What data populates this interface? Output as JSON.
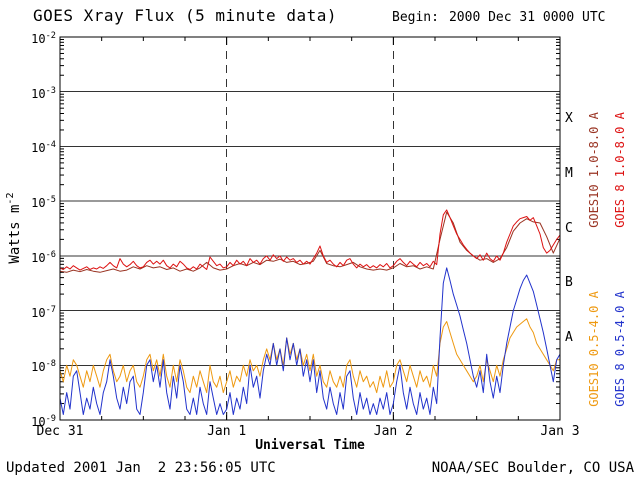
{
  "header": {
    "title": "GOES Xray Flux (5 minute data)",
    "begin_label": "Begin:",
    "begin_value": "2000 Dec 31 0000 UTC"
  },
  "footer": {
    "updated": "Updated 2001 Jan  2 23:56:05 UTC",
    "source": "NOAA/SEC Boulder, CO USA"
  },
  "chart_data": {
    "type": "line",
    "title": "GOES Xray Flux (5 minute data)",
    "xlabel": "Universal Time",
    "ylabel_base": "Watts m",
    "ylabel_sup": "-2",
    "y_tick_base": "10",
    "x_range_days": [
      0,
      3
    ],
    "y_log_range": [
      -9,
      -2
    ],
    "y_ticks_exponents": [
      -2,
      -3,
      -4,
      -5,
      -6,
      -7,
      -8,
      -9
    ],
    "x_ticks": [
      {
        "label": "Dec 31",
        "day": 0
      },
      {
        "label": "Jan 1",
        "day": 1
      },
      {
        "label": "Jan 2",
        "day": 2
      },
      {
        "label": "Jan 3",
        "day": 3
      }
    ],
    "grid": {
      "h_solid_decades": true,
      "v_dashed_days": [
        1,
        2
      ]
    },
    "flare_classes": [
      {
        "label": "X",
        "log_center": -3.5
      },
      {
        "label": "M",
        "log_center": -4.5
      },
      {
        "label": "C",
        "log_center": -5.5
      },
      {
        "label": "B",
        "log_center": -6.5
      },
      {
        "label": "A",
        "log_center": -7.5
      }
    ],
    "legend": [
      {
        "label": "GOES10 1.0-8.0 A",
        "color": "#993322",
        "column": 0,
        "row": 0
      },
      {
        "label": "GOES 8 1.0-8.0 A",
        "color": "#dd1111",
        "column": 1,
        "row": 0
      },
      {
        "label": "GOES10 0.5-4.0 A",
        "color": "#ee9911",
        "column": 0,
        "row": 1
      },
      {
        "label": "GOES 8 0.5-4.0 A",
        "color": "#2233cc",
        "column": 1,
        "row": 1
      }
    ],
    "series": [
      {
        "name": "GOES10 1.0-8.0 A",
        "color": "#993322",
        "x0": 0,
        "dx": 0.04,
        "log10_values": [
          -6.28,
          -6.3,
          -6.26,
          -6.29,
          -6.25,
          -6.28,
          -6.3,
          -6.27,
          -6.24,
          -6.28,
          -6.26,
          -6.2,
          -6.24,
          -6.18,
          -6.22,
          -6.2,
          -6.25,
          -6.22,
          -6.28,
          -6.24,
          -6.28,
          -6.22,
          -6.12,
          -6.22,
          -6.26,
          -6.24,
          -6.18,
          -6.14,
          -6.18,
          -6.12,
          -6.16,
          -6.08,
          -6.1,
          -6.06,
          -6.12,
          -6.1,
          -6.16,
          -6.14,
          -6.1,
          -5.9,
          -6.14,
          -6.18,
          -6.2,
          -6.16,
          -6.12,
          -6.2,
          -6.24,
          -6.26,
          -6.24,
          -6.26,
          -6.22,
          -6.14,
          -6.2,
          -6.18,
          -6.24,
          -6.2,
          -6.24,
          -5.7,
          -5.2,
          -5.4,
          -5.75,
          -5.9,
          -6.0,
          -6.08,
          -6.05,
          -6.12,
          -6.05,
          -5.85,
          -5.55,
          -5.4,
          -5.32,
          -5.38,
          -5.4,
          -5.65,
          -5.95,
          -5.68
        ]
      },
      {
        "name": "GOES10 0.5-4.0 A",
        "color": "#ee9911",
        "x0": 0,
        "dx": 0.02,
        "log10_values": [
          -8.1,
          -8.3,
          -8.0,
          -8.2,
          -7.9,
          -8.0,
          -8.2,
          -8.4,
          -8.1,
          -8.3,
          -8.0,
          -8.2,
          -8.4,
          -8.1,
          -7.9,
          -7.8,
          -8.1,
          -8.3,
          -8.2,
          -8.0,
          -8.3,
          -8.1,
          -8.0,
          -8.3,
          -8.4,
          -8.2,
          -7.9,
          -7.8,
          -8.1,
          -7.9,
          -8.2,
          -7.8,
          -8.2,
          -8.4,
          -8.0,
          -8.3,
          -7.9,
          -8.1,
          -8.4,
          -8.5,
          -8.2,
          -8.4,
          -8.1,
          -8.3,
          -8.5,
          -8.0,
          -8.3,
          -8.4,
          -8.2,
          -8.5,
          -8.3,
          -8.1,
          -8.4,
          -8.2,
          -8.3,
          -8.0,
          -8.2,
          -7.9,
          -8.1,
          -8.0,
          -8.2,
          -7.9,
          -7.7,
          -7.9,
          -7.6,
          -7.9,
          -7.7,
          -8.0,
          -7.5,
          -7.8,
          -7.6,
          -7.9,
          -7.7,
          -8.0,
          -7.8,
          -8.1,
          -7.8,
          -8.2,
          -8.0,
          -8.3,
          -8.4,
          -8.1,
          -8.3,
          -8.4,
          -8.2,
          -8.4,
          -8.0,
          -7.9,
          -8.2,
          -8.4,
          -8.1,
          -8.3,
          -8.2,
          -8.4,
          -8.3,
          -8.5,
          -8.2,
          -8.4,
          -8.1,
          -8.4,
          -8.3,
          -8.0,
          -7.9,
          -8.1,
          -8.3,
          -8.0,
          -8.2,
          -8.4,
          -8.1,
          -8.3,
          -8.2,
          -8.4,
          -8.0,
          -8.2,
          -7.6,
          -7.3,
          -7.2,
          -7.4,
          -7.6,
          -7.8,
          -7.9,
          -8.0,
          -8.1,
          -8.2,
          -8.3,
          -8.2,
          -8.0,
          -8.3,
          -7.9,
          -8.1,
          -8.3,
          -8.0,
          -8.2,
          -7.9,
          -7.7,
          -7.5,
          -7.4,
          -7.3,
          -7.25,
          -7.2,
          -7.15,
          -7.3,
          -7.4,
          -7.6,
          -7.7,
          -7.8,
          -7.9,
          -8.0,
          -8.1,
          -7.9,
          -7.9
        ]
      },
      {
        "name": "GOES 8 0.5-4.0 A",
        "color": "#2233cc",
        "x0": 0,
        "dx": 0.02,
        "log10_values": [
          -8.6,
          -8.9,
          -8.5,
          -8.8,
          -8.2,
          -8.1,
          -8.5,
          -8.9,
          -8.6,
          -8.8,
          -8.4,
          -8.7,
          -8.9,
          -8.5,
          -8.3,
          -7.9,
          -8.2,
          -8.6,
          -8.8,
          -8.4,
          -8.7,
          -8.3,
          -8.2,
          -8.8,
          -8.9,
          -8.5,
          -8.0,
          -7.9,
          -8.3,
          -8.0,
          -8.4,
          -7.9,
          -8.5,
          -8.8,
          -8.2,
          -8.6,
          -8.0,
          -8.3,
          -8.8,
          -8.9,
          -8.6,
          -8.9,
          -8.4,
          -8.7,
          -8.9,
          -8.3,
          -8.6,
          -8.9,
          -8.7,
          -8.9,
          -8.8,
          -8.5,
          -8.9,
          -8.6,
          -8.8,
          -8.4,
          -8.7,
          -8.0,
          -8.4,
          -8.2,
          -8.6,
          -8.1,
          -7.8,
          -8.0,
          -7.6,
          -8.0,
          -7.7,
          -8.1,
          -7.5,
          -7.9,
          -7.6,
          -8.0,
          -7.7,
          -8.2,
          -7.9,
          -8.3,
          -7.9,
          -8.5,
          -8.1,
          -8.6,
          -8.8,
          -8.4,
          -8.7,
          -8.9,
          -8.5,
          -8.8,
          -8.2,
          -8.1,
          -8.6,
          -8.9,
          -8.5,
          -8.8,
          -8.6,
          -8.9,
          -8.7,
          -8.9,
          -8.6,
          -8.8,
          -8.5,
          -8.9,
          -8.7,
          -8.3,
          -8.0,
          -8.5,
          -8.8,
          -8.4,
          -8.7,
          -8.9,
          -8.5,
          -8.8,
          -8.6,
          -8.9,
          -8.4,
          -8.7,
          -7.5,
          -6.5,
          -6.22,
          -6.45,
          -6.7,
          -6.9,
          -7.1,
          -7.35,
          -7.6,
          -7.9,
          -8.2,
          -8.4,
          -8.1,
          -8.5,
          -7.8,
          -8.3,
          -8.6,
          -8.2,
          -8.5,
          -8.0,
          -7.6,
          -7.3,
          -7.0,
          -6.8,
          -6.6,
          -6.45,
          -6.35,
          -6.5,
          -6.65,
          -6.9,
          -7.15,
          -7.4,
          -7.7,
          -8.0,
          -8.3,
          -7.9,
          -7.8
        ]
      },
      {
        "name": "GOES 8 1.0-8.0 A",
        "color": "#dd1111",
        "x0": 0,
        "dx": 0.02,
        "log10_values": [
          -6.22,
          -6.25,
          -6.2,
          -6.24,
          -6.18,
          -6.22,
          -6.26,
          -6.23,
          -6.2,
          -6.25,
          -6.22,
          -6.24,
          -6.2,
          -6.23,
          -6.18,
          -6.12,
          -6.18,
          -6.22,
          -6.05,
          -6.15,
          -6.2,
          -6.16,
          -6.1,
          -6.18,
          -6.22,
          -6.2,
          -6.12,
          -6.08,
          -6.15,
          -6.1,
          -6.15,
          -6.08,
          -6.18,
          -6.22,
          -6.15,
          -6.2,
          -6.1,
          -6.15,
          -6.22,
          -6.25,
          -6.2,
          -6.24,
          -6.15,
          -6.2,
          -6.25,
          -6.02,
          -6.1,
          -6.18,
          -6.15,
          -6.22,
          -6.2,
          -6.12,
          -6.18,
          -6.08,
          -6.15,
          -6.1,
          -6.18,
          -6.05,
          -6.12,
          -6.08,
          -6.15,
          -6.05,
          -6.0,
          -6.08,
          -5.98,
          -6.05,
          -6.0,
          -6.1,
          -6.02,
          -6.08,
          -6.05,
          -6.12,
          -6.08,
          -6.15,
          -6.1,
          -6.15,
          -6.05,
          -5.95,
          -5.82,
          -6.0,
          -6.12,
          -6.08,
          -6.15,
          -6.2,
          -6.12,
          -6.18,
          -6.08,
          -6.05,
          -6.15,
          -6.22,
          -6.15,
          -6.2,
          -6.16,
          -6.22,
          -6.18,
          -6.22,
          -6.16,
          -6.2,
          -6.14,
          -6.22,
          -6.18,
          -6.1,
          -6.05,
          -6.12,
          -6.18,
          -6.1,
          -6.15,
          -6.2,
          -6.12,
          -6.18,
          -6.14,
          -6.2,
          -6.1,
          -6.16,
          -5.6,
          -5.25,
          -5.16,
          -5.3,
          -5.45,
          -5.6,
          -5.7,
          -5.8,
          -5.88,
          -5.95,
          -6.0,
          -6.05,
          -5.98,
          -6.08,
          -5.95,
          -6.05,
          -6.1,
          -6.0,
          -6.08,
          -5.95,
          -5.75,
          -5.6,
          -5.45,
          -5.38,
          -5.32,
          -5.3,
          -5.28,
          -5.35,
          -5.3,
          -5.45,
          -5.6,
          -5.85,
          -5.95,
          -5.9,
          -5.8,
          -5.7,
          -5.62
        ]
      }
    ]
  }
}
